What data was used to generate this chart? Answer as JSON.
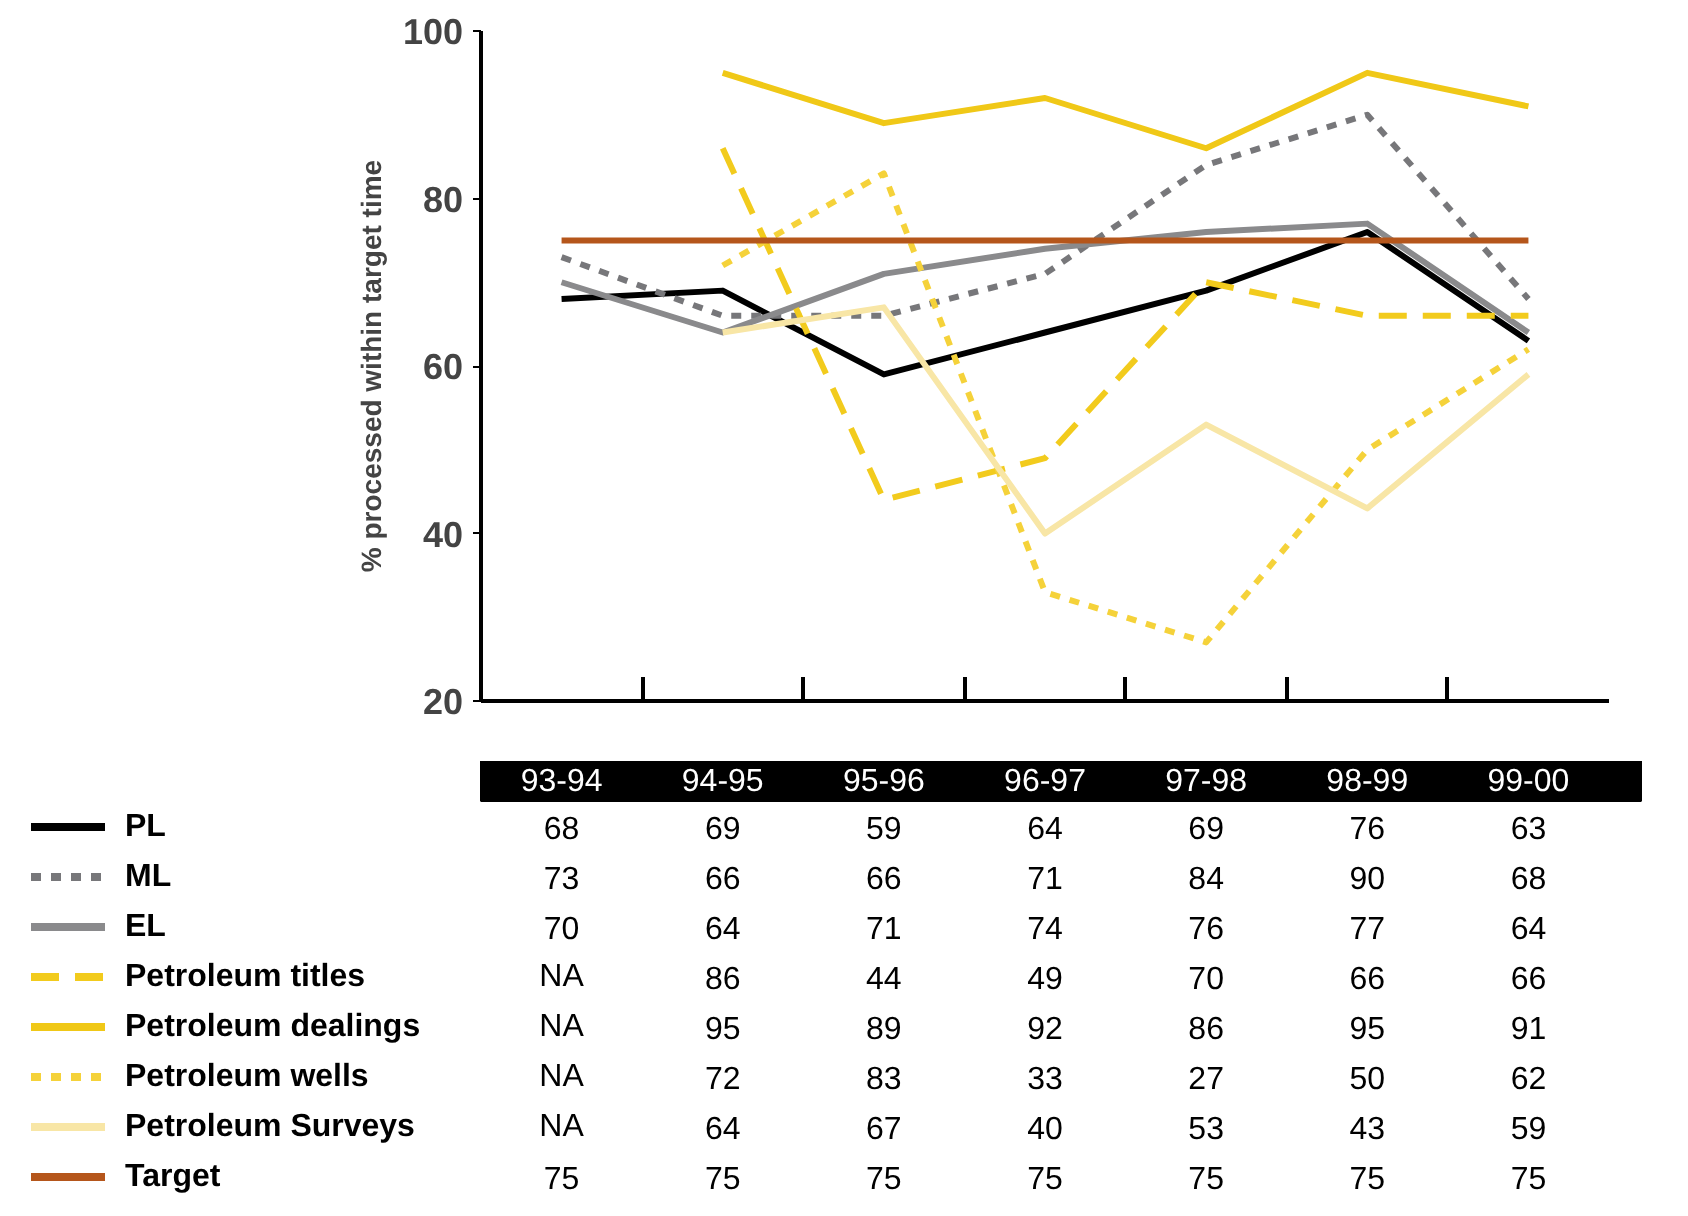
{
  "chart_data": {
    "type": "line",
    "ylabel": "% processed within target time",
    "categories": [
      "93-94",
      "94-95",
      "95-96",
      "96-97",
      "97-98",
      "98-99",
      "99-00"
    ],
    "ylim": [
      20,
      100
    ],
    "yticks": [
      20,
      40,
      60,
      80,
      100
    ],
    "grid": false,
    "legend": "bottom",
    "tick_labels": "y",
    "marker": "none",
    "series": [
      {
        "name": "PL",
        "color": "#000000",
        "line_style": "solid",
        "values": [
          68,
          69,
          59,
          64,
          69,
          76,
          63
        ],
        "value_labels": [
          "68",
          "69",
          "59",
          "64",
          "69",
          "76",
          "63"
        ]
      },
      {
        "name": "ML",
        "color": "#77777a",
        "line_style": "dotted",
        "values": [
          73,
          66,
          66,
          71,
          84,
          90,
          68
        ],
        "value_labels": [
          "73",
          "66",
          "66",
          "71",
          "84",
          "90",
          "68"
        ]
      },
      {
        "name": "EL",
        "color": "#8a8a8c",
        "line_style": "solid",
        "values": [
          70,
          64,
          71,
          74,
          76,
          77,
          64
        ],
        "value_labels": [
          "70",
          "64",
          "71",
          "74",
          "76",
          "77",
          "64"
        ]
      },
      {
        "name": "Petroleum titles",
        "color": "#f2cb1d",
        "line_style": "dashed",
        "values": [
          null,
          86,
          44,
          49,
          70,
          66,
          66
        ],
        "value_labels": [
          "NA",
          "86",
          "44",
          "49",
          "70",
          "66",
          "66"
        ]
      },
      {
        "name": "Petroleum dealings",
        "color": "#f0c817",
        "line_style": "solid",
        "values": [
          null,
          95,
          89,
          92,
          86,
          95,
          91
        ],
        "value_labels": [
          "NA",
          "95",
          "89",
          "92",
          "86",
          "95",
          "91"
        ]
      },
      {
        "name": "Petroleum wells",
        "color": "#f5d23a",
        "line_style": "dotted",
        "values": [
          null,
          72,
          83,
          33,
          27,
          50,
          62
        ],
        "value_labels": [
          "NA",
          "72",
          "83",
          "33",
          "27",
          "50",
          "62"
        ]
      },
      {
        "name": "Petroleum Surveys",
        "color": "#f8e6a6",
        "line_style": "solid",
        "values": [
          null,
          64,
          67,
          40,
          53,
          43,
          59
        ],
        "value_labels": [
          "NA",
          "64",
          "67",
          "40",
          "53",
          "43",
          "59"
        ]
      },
      {
        "name": "Target",
        "color": "#b5561b",
        "line_style": "solid",
        "values": [
          75,
          75,
          75,
          75,
          75,
          75,
          75
        ],
        "value_labels": [
          "75",
          "75",
          "75",
          "75",
          "75",
          "75",
          "75"
        ]
      }
    ]
  }
}
